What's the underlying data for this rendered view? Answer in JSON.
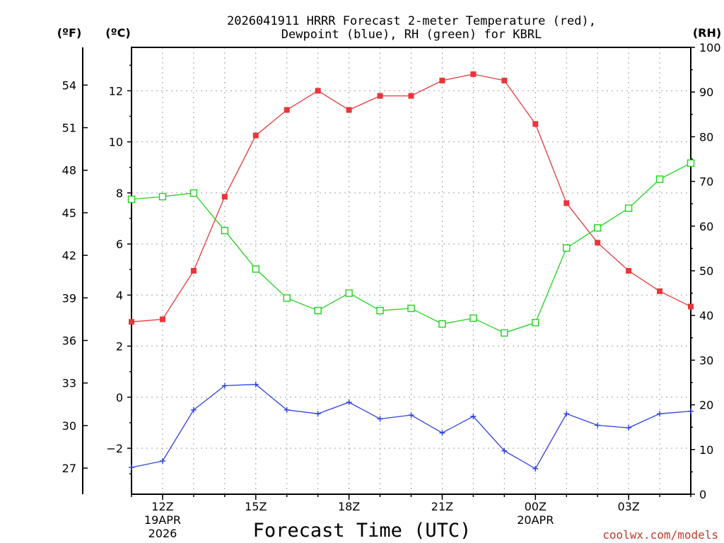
{
  "title": {
    "line1": "2026041911 HRRR Forecast 2-meter Temperature (red),",
    "line2": "Dewpoint (blue), RH (green) for KBRL"
  },
  "units": {
    "fahrenheit": "(ºF)",
    "celsius": "(ºC)",
    "rh": "(RH)"
  },
  "x_title": "Forecast Time (UTC)",
  "credit": "coolwx.com/models",
  "colors": {
    "temperature": "#e8363b",
    "dewpoint": "#2d3fe0",
    "rh": "#1ed41e",
    "grid": "#a0a0a0"
  },
  "chart_data": {
    "type": "line",
    "title": "2026041911 HRRR Forecast 2-meter Temperature (red), Dewpoint (blue), RH (green) for KBRL",
    "xlabel": "Forecast Time (UTC)",
    "x_hours": [
      11,
      12,
      13,
      14,
      15,
      16,
      17,
      18,
      19,
      20,
      21,
      22,
      23,
      24,
      25,
      26,
      27,
      28,
      29
    ],
    "xlim": [
      11,
      29
    ],
    "x_ticks": [
      {
        "hour": 12,
        "label": "12Z",
        "sub1": "19APR",
        "sub2": "2026"
      },
      {
        "hour": 15,
        "label": "15Z",
        "sub1": "",
        "sub2": ""
      },
      {
        "hour": 18,
        "label": "18Z",
        "sub1": "",
        "sub2": ""
      },
      {
        "hour": 21,
        "label": "21Z",
        "sub1": "",
        "sub2": ""
      },
      {
        "hour": 24,
        "label": "00Z",
        "sub1": "20APR",
        "sub2": ""
      },
      {
        "hour": 27,
        "label": "03Z",
        "sub1": "",
        "sub2": ""
      }
    ],
    "y_celsius": {
      "label": "(ºC)",
      "range": [
        -3.8,
        13.7
      ],
      "ticks": [
        -2,
        0,
        2,
        4,
        6,
        8,
        10,
        12
      ],
      "tick_labels": [
        "−2",
        "0",
        "2",
        "4",
        "6",
        "8",
        "10",
        "12"
      ]
    },
    "y_fahrenheit": {
      "label": "(ºF)",
      "ticks": [
        27,
        30,
        33,
        36,
        39,
        42,
        45,
        48,
        51,
        54
      ]
    },
    "y_rh": {
      "label": "(RH)",
      "range": [
        0,
        100
      ],
      "ticks": [
        0,
        10,
        20,
        30,
        40,
        50,
        60,
        70,
        80,
        90,
        100
      ]
    },
    "series": [
      {
        "name": "Temperature",
        "unit": "C",
        "color": "#e8363b",
        "marker": "filled-square",
        "values": [
          2.95,
          3.05,
          4.95,
          7.85,
          10.25,
          11.25,
          12.0,
          11.25,
          11.8,
          11.8,
          12.4,
          12.65,
          12.4,
          10.7,
          7.6,
          6.05,
          4.95,
          4.15,
          3.55
        ]
      },
      {
        "name": "Dewpoint",
        "unit": "C",
        "color": "#2d3fe0",
        "marker": "plus",
        "values": [
          -2.75,
          -2.5,
          -0.5,
          0.45,
          0.5,
          -0.5,
          -0.65,
          -0.2,
          -0.85,
          -0.7,
          -1.4,
          -0.75,
          -2.1,
          -2.8,
          -0.65,
          -1.1,
          -1.2,
          -0.65,
          -0.55
        ]
      },
      {
        "name": "RH",
        "unit": "%",
        "color": "#1ed41e",
        "marker": "open-square",
        "values": [
          66,
          66.6,
          67.4,
          59,
          50.4,
          43.9,
          41.1,
          45,
          41.1,
          41.6,
          38.1,
          39.4,
          36.1,
          38.4,
          55.1,
          59.6,
          64,
          70.5,
          74.1
        ]
      }
    ]
  }
}
